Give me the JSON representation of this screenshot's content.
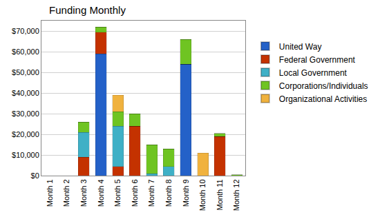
{
  "chart_data": {
    "type": "bar",
    "title": "Funding Monthly",
    "stacked": true,
    "grid": true,
    "legend": "right",
    "categories": [
      "Month 1",
      "Month 2",
      "Month 3",
      "Month 4",
      "Month 5",
      "Month 6",
      "Month 7",
      "Month 8",
      "Month 9",
      "Month 10",
      "Month 11",
      "Month 12"
    ],
    "series": [
      {
        "name": "United Way",
        "color": "#2461c8",
        "values": [
          0,
          0,
          0,
          59000,
          0,
          0,
          0,
          0,
          54000,
          0,
          0,
          0
        ]
      },
      {
        "name": "Federal Government",
        "color": "#c43200",
        "values": [
          0,
          0,
          9000,
          10500,
          4500,
          24000,
          0,
          0,
          0,
          0,
          19000,
          0
        ]
      },
      {
        "name": "Local Government",
        "color": "#3fb0c6",
        "values": [
          0,
          0,
          12000,
          0,
          19500,
          0,
          1000,
          4500,
          0,
          0,
          0,
          0
        ]
      },
      {
        "name": "Corporations/Individuals",
        "color": "#6fc422",
        "values": [
          0,
          0,
          5000,
          2500,
          7000,
          6000,
          14000,
          8500,
          12000,
          0,
          1500,
          500
        ]
      },
      {
        "name": "Organizational Activities",
        "color": "#f0b23e",
        "values": [
          0,
          0,
          0,
          0,
          8000,
          0,
          0,
          0,
          0,
          11000,
          0,
          0
        ]
      }
    ],
    "ylim": [
      0,
      75000
    ],
    "yticks": [
      {
        "value": 0,
        "label": "$0"
      },
      {
        "value": 10000,
        "label": "$10,000"
      },
      {
        "value": 20000,
        "label": "$20,000"
      },
      {
        "value": 30000,
        "label": "$30,000"
      },
      {
        "value": 40000,
        "label": "$40,000"
      },
      {
        "value": 50000,
        "label": "$50,000"
      },
      {
        "value": 60000,
        "label": "$60,000"
      },
      {
        "value": 70000,
        "label": "$70,000"
      }
    ]
  }
}
